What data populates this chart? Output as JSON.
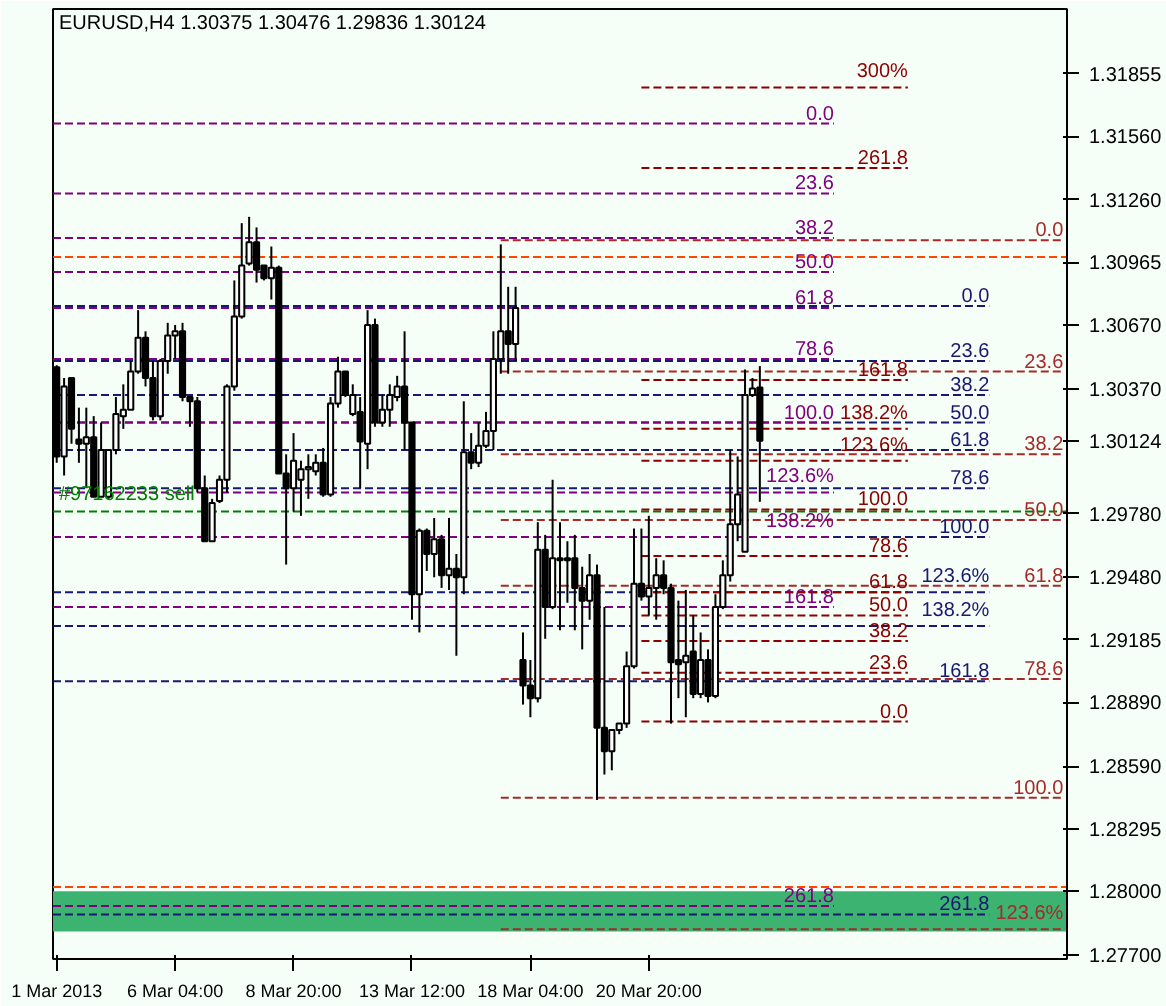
{
  "chart_data": {
    "type": "candlestick",
    "title": "EURUSD,H4  1.30375 1.30476 1.29836 1.30124",
    "categories": [
      "1 Mar 2013",
      null,
      null,
      null,
      null,
      null,
      null,
      null,
      null,
      null,
      null,
      null,
      null,
      null,
      null,
      null,
      "6 Mar 04:00",
      null,
      null,
      null,
      null,
      null,
      null,
      null,
      null,
      null,
      null,
      null,
      null,
      null,
      null,
      null,
      "8 Mar 20:00",
      null,
      null,
      null,
      null,
      null,
      null,
      null,
      null,
      null,
      null,
      null,
      null,
      null,
      null,
      null,
      "13 Mar 12:00",
      null,
      null,
      null,
      null,
      null,
      null,
      null,
      null,
      null,
      null,
      null,
      null,
      null,
      null,
      null,
      "18 Mar 04:00",
      null,
      null,
      null,
      null,
      null,
      null,
      null,
      null,
      null,
      null,
      null,
      null,
      null,
      null,
      null,
      "20 Mar 20:00",
      null,
      null,
      null,
      null,
      null,
      null,
      null,
      null,
      null,
      null,
      null,
      null,
      null,
      null,
      null,
      null,
      null,
      null,
      null,
      null,
      null,
      null,
      null,
      null,
      null,
      null,
      null,
      null,
      null,
      null,
      null,
      null,
      null,
      null,
      null,
      null,
      null,
      null,
      null,
      null,
      null,
      null,
      null,
      null,
      null,
      null,
      null,
      null,
      null,
      null,
      null,
      null,
      null,
      null,
      null,
      null
    ],
    "ohlc": [
      [
        1.3047,
        1.3048,
        1.3002,
        1.3005
      ],
      [
        1.3005,
        1.3042,
        1.2996,
        1.3038
      ],
      [
        1.3042,
        1.3042,
        1.3011,
        1.3018
      ],
      [
        1.3013,
        1.3028,
        1.3002,
        1.3011
      ],
      [
        1.3011,
        1.3028,
        1.299,
        1.3014
      ],
      [
        1.3014,
        1.3024,
        1.2986,
        1.2986
      ],
      [
        1.2986,
        1.3021,
        1.2986,
        1.3008
      ],
      [
        1.2986,
        1.3008,
        1.2985,
        1.3008
      ],
      [
        1.3008,
        1.3033,
        1.3006,
        1.3025
      ],
      [
        1.3024,
        1.3039,
        1.3018,
        1.3027
      ],
      [
        1.3027,
        1.305,
        1.3027,
        1.3045
      ],
      [
        1.3045,
        1.3074,
        1.3044,
        1.3061
      ],
      [
        1.3061,
        1.3064,
        1.3038,
        1.3042
      ],
      [
        1.3042,
        1.305,
        1.3022,
        1.3024
      ],
      [
        1.3024,
        1.3051,
        1.3022,
        1.305
      ],
      [
        1.305,
        1.3068,
        1.3044,
        1.3062
      ],
      [
        1.3062,
        1.3067,
        1.3051,
        1.3064
      ],
      [
        1.3064,
        1.3068,
        1.3031,
        1.3033
      ],
      [
        1.3033,
        1.3033,
        1.3019,
        1.3031
      ],
      [
        1.3031,
        1.3033,
        1.2988,
        1.299
      ],
      [
        1.299,
        1.2996,
        1.2965,
        1.2965
      ],
      [
        1.2965,
        1.2985,
        1.2965,
        1.2983
      ],
      [
        1.2984,
        1.2996,
        1.2983,
        1.2994
      ],
      [
        1.2994,
        1.3039,
        1.2988,
        1.3038
      ],
      [
        1.3038,
        1.3088,
        1.3036,
        1.3071
      ],
      [
        1.3071,
        1.3115,
        1.307,
        1.3095
      ],
      [
        1.3096,
        1.3118,
        1.3095,
        1.3106
      ],
      [
        1.3106,
        1.3113,
        1.3087,
        1.3093
      ],
      [
        1.3095,
        1.3095,
        1.3088,
        1.3089
      ],
      [
        1.3089,
        1.3104,
        1.3079,
        1.3094
      ],
      [
        1.3094,
        1.3095,
        1.2997,
        1.2997
      ],
      [
        1.2997,
        1.3006,
        1.2954,
        1.299
      ],
      [
        1.299,
        1.3016,
        1.2979,
        1.3003
      ],
      [
        1.2994,
        1.3003,
        1.2977,
        1.2999
      ],
      [
        1.2999,
        1.3006,
        1.2985,
        1.3
      ],
      [
        1.2998,
        1.3006,
        1.2996,
        1.3002
      ],
      [
        1.3002,
        1.3009,
        1.2986,
        1.2987
      ],
      [
        1.2987,
        1.3033,
        1.2986,
        1.303
      ],
      [
        1.303,
        1.3052,
        1.3028,
        1.3045
      ],
      [
        1.3045,
        1.3045,
        1.3033,
        1.3034
      ],
      [
        1.3025,
        1.3039,
        1.3024,
        1.3034
      ],
      [
        1.3026,
        1.3033,
        1.299,
        1.3012
      ],
      [
        1.3011,
        1.3074,
        1.2999,
        1.3067
      ],
      [
        1.3067,
        1.307,
        1.3019,
        1.3021
      ],
      [
        1.3021,
        1.3034,
        1.3019,
        1.3027
      ],
      [
        1.3027,
        1.3039,
        1.3019,
        1.3034
      ],
      [
        1.3033,
        1.3043,
        1.3031,
        1.3038
      ],
      [
        1.3038,
        1.3064,
        1.3008,
        1.3021
      ],
      [
        1.3021,
        1.3021,
        1.2928,
        1.294
      ],
      [
        1.294,
        1.2971,
        1.2922,
        1.297
      ],
      [
        1.297,
        1.2971,
        1.2951,
        1.2959
      ],
      [
        1.2959,
        1.2976,
        1.2948,
        1.2966
      ],
      [
        1.2966,
        1.2968,
        1.2943,
        1.2949
      ],
      [
        1.2949,
        1.2976,
        1.2942,
        1.2952
      ],
      [
        1.2952,
        1.2959,
        1.2911,
        1.2948
      ],
      [
        1.2948,
        1.3031,
        1.294,
        1.3007
      ],
      [
        1.3007,
        1.3016,
        1.2999,
        1.3002
      ],
      [
        1.3002,
        1.3021,
        1.3,
        1.301
      ],
      [
        1.301,
        1.3026,
        1.3009,
        1.3017
      ],
      [
        1.3017,
        1.3064,
        1.3008,
        1.3051
      ],
      [
        1.3051,
        1.3105,
        1.3044,
        1.3064
      ],
      [
        1.3064,
        1.3085,
        1.3044,
        1.3058
      ],
      [
        1.3058,
        1.3085,
        1.305,
        1.3075
      ],
      [
        1.2909,
        1.2922,
        1.2888,
        1.2897
      ],
      [
        1.2897,
        1.2909,
        1.2882,
        1.2891
      ],
      [
        1.2891,
        1.2974,
        1.2889,
        1.2961
      ],
      [
        1.2961,
        1.2968,
        1.2919,
        1.2934
      ],
      [
        1.2934,
        1.2994,
        1.2933,
        1.2957
      ],
      [
        1.2957,
        1.2974,
        1.2923,
        1.2956
      ],
      [
        1.2956,
        1.2965,
        1.2936,
        1.2957
      ],
      [
        1.2957,
        1.2968,
        1.2923,
        1.2943
      ],
      [
        1.2943,
        1.2953,
        1.2914,
        1.2937
      ],
      [
        1.2937,
        1.2959,
        1.2928,
        1.2949
      ],
      [
        1.2949,
        1.2954,
        1.2843,
        1.2877
      ],
      [
        1.2877,
        1.2934,
        1.2855,
        1.2866
      ],
      [
        1.2866,
        1.2876,
        1.2857,
        1.2876
      ],
      [
        1.2876,
        1.2879,
        1.2874,
        1.2879
      ],
      [
        1.2879,
        1.2913,
        1.2877,
        1.2906
      ],
      [
        1.2906,
        1.2971,
        1.2905,
        1.2945
      ],
      [
        1.2945,
        1.2971,
        1.2937,
        1.2939
      ],
      [
        1.2939,
        1.2977,
        1.293,
        1.2943
      ],
      [
        1.2943,
        1.2957,
        1.2928,
        1.2949
      ],
      [
        1.2949,
        1.2956,
        1.294,
        1.2943
      ],
      [
        1.2943,
        1.2945,
        1.2879,
        1.2908
      ],
      [
        1.2909,
        1.2937,
        1.2891,
        1.2907
      ],
      [
        1.2908,
        1.2942,
        1.2882,
        1.2911
      ],
      [
        1.2913,
        1.293,
        1.2891,
        1.2893
      ],
      [
        1.2893,
        1.2922,
        1.2891,
        1.2909
      ],
      [
        1.2909,
        1.2914,
        1.2889,
        1.2892
      ],
      [
        1.2892,
        1.294,
        1.2891,
        1.2934
      ],
      [
        1.2934,
        1.2956,
        1.2933,
        1.2949
      ],
      [
        1.2949,
        1.3008,
        1.2946,
        1.2973
      ],
      [
        1.2973,
        1.3005,
        1.2965,
        1.2987
      ],
      [
        1.296,
        1.3046,
        1.296,
        1.3034
      ],
      [
        1.3034,
        1.3042,
        1.3033,
        1.3037
      ],
      [
        1.30375,
        1.30476,
        1.29836,
        1.30124
      ],
      null,
      null,
      null,
      null,
      null,
      null,
      null,
      null,
      null,
      null,
      null,
      null,
      null,
      null,
      null,
      null,
      null,
      null,
      null,
      null,
      null,
      null,
      null,
      null,
      null,
      null,
      null,
      null,
      null,
      null,
      null,
      null,
      null,
      null,
      null,
      null,
      null,
      null,
      null,
      null,
      null
    ],
    "ylim": [
      1.2768,
      1.3216
    ],
    "yticks": [
      {
        "value": 1.31855,
        "label": "1.31855"
      },
      {
        "value": 1.3156,
        "label": "1.31560"
      },
      {
        "value": 1.3126,
        "label": "1.31260"
      },
      {
        "value": 1.30965,
        "label": "1.30965"
      },
      {
        "value": 1.3067,
        "label": "1.30670"
      },
      {
        "value": 1.3037,
        "label": "1.30370"
      },
      {
        "value": 1.30124,
        "label": "1.30124"
      },
      {
        "value": 1.2978,
        "label": "1.29780"
      },
      {
        "value": 1.2948,
        "label": "1.29480"
      },
      {
        "value": 1.29185,
        "label": "1.29185"
      },
      {
        "value": 1.2889,
        "label": "1.28890"
      },
      {
        "value": 1.2859,
        "label": "1.28590"
      },
      {
        "value": 1.28295,
        "label": "1.28295"
      },
      {
        "value": 1.28,
        "label": "1.28000"
      },
      {
        "value": 1.277,
        "label": "1.27700"
      }
    ],
    "ref_lines": [
      {
        "axis": "y",
        "value": 1.3162,
        "color": "#800080",
        "line_style": "dashed"
      },
      {
        "axis": "y",
        "value": 1.3129,
        "color": "#800080",
        "line_style": "dashed"
      },
      {
        "axis": "y",
        "value": 1.3108,
        "color": "#800080",
        "line_style": "dashed"
      },
      {
        "axis": "y",
        "value": 1.3092,
        "color": "#800080",
        "line_style": "dashed"
      },
      {
        "axis": "y",
        "value": 1.3075,
        "color": "#800080",
        "line_style": "dashed"
      },
      {
        "axis": "y",
        "value": 1.3051,
        "color": "#800080",
        "line_style": "dashed"
      },
      {
        "axis": "y",
        "value": 1.3021,
        "color": "#800080",
        "line_style": "dashed"
      },
      {
        "axis": "y",
        "value": 1.2988,
        "color": "#800080",
        "line_style": "dashed"
      },
      {
        "axis": "y",
        "value": 1.2967,
        "color": "#800080",
        "line_style": "dashed"
      },
      {
        "axis": "y",
        "value": 1.2934,
        "color": "#800080",
        "line_style": "dashed"
      },
      {
        "axis": "y",
        "value": 1.2793,
        "color": "#800080",
        "line_style": "dashed"
      },
      {
        "axis": "y",
        "value": 1.288,
        "color": "#8b0000",
        "line_style": "dashed"
      },
      {
        "axis": "y",
        "value": 1.2903,
        "color": "#8b0000",
        "line_style": "dashed"
      },
      {
        "axis": "y",
        "value": 1.2918,
        "color": "#8b0000",
        "line_style": "dashed"
      },
      {
        "axis": "y",
        "value": 1.293,
        "color": "#8b0000",
        "line_style": "dashed"
      },
      {
        "axis": "y",
        "value": 1.2941,
        "color": "#8b0000",
        "line_style": "dashed"
      },
      {
        "axis": "y",
        "value": 1.2958,
        "color": "#8b0000",
        "line_style": "dashed"
      },
      {
        "axis": "y",
        "value": 1.298,
        "color": "#8b0000",
        "line_style": "dashed"
      },
      {
        "axis": "y",
        "value": 1.3003,
        "color": "#8b0000",
        "line_style": "dashed"
      },
      {
        "axis": "y",
        "value": 1.3018,
        "color": "#8b0000",
        "line_style": "dashed"
      },
      {
        "axis": "y",
        "value": 1.3041,
        "color": "#8b0000",
        "line_style": "dashed"
      },
      {
        "axis": "y",
        "value": 1.3141,
        "color": "#8b0000",
        "line_style": "dashed"
      },
      {
        "axis": "y",
        "value": 1.3179,
        "color": "#8b0000",
        "line_style": "dashed"
      },
      {
        "axis": "y",
        "value": 1.3076,
        "color": "#191970",
        "line_style": "dashed"
      },
      {
        "axis": "y",
        "value": 1.305,
        "color": "#191970",
        "line_style": "dashed"
      },
      {
        "axis": "y",
        "value": 1.3034,
        "color": "#191970",
        "line_style": "dashed"
      },
      {
        "axis": "y",
        "value": 1.3021,
        "color": "#191970",
        "line_style": "dashed"
      },
      {
        "axis": "y",
        "value": 1.3008,
        "color": "#191970",
        "line_style": "dashed"
      },
      {
        "axis": "y",
        "value": 1.299,
        "color": "#191970",
        "line_style": "dashed"
      },
      {
        "axis": "y",
        "value": 1.2967,
        "color": "#191970",
        "line_style": "dashed"
      },
      {
        "axis": "y",
        "value": 1.2941,
        "color": "#191970",
        "line_style": "dashed"
      },
      {
        "axis": "y",
        "value": 1.2925,
        "color": "#191970",
        "line_style": "dashed"
      },
      {
        "axis": "y",
        "value": 1.2899,
        "color": "#191970",
        "line_style": "dashed"
      },
      {
        "axis": "y",
        "value": 1.2789,
        "color": "#191970",
        "line_style": "dashed"
      },
      {
        "axis": "y",
        "value": 1.3107,
        "color": "#a52a2a",
        "line_style": "dashed"
      },
      {
        "axis": "y",
        "value": 1.3045,
        "color": "#a52a2a",
        "line_style": "dashed"
      },
      {
        "axis": "y",
        "value": 1.3006,
        "color": "#a52a2a",
        "line_style": "dashed"
      },
      {
        "axis": "y",
        "value": 1.2975,
        "color": "#a52a2a",
        "line_style": "dashed"
      },
      {
        "axis": "y",
        "value": 1.2944,
        "color": "#a52a2a",
        "line_style": "dashed"
      },
      {
        "axis": "y",
        "value": 1.29,
        "color": "#a52a2a",
        "line_style": "dashed"
      },
      {
        "axis": "y",
        "value": 1.2844,
        "color": "#a52a2a",
        "line_style": "dashed"
      },
      {
        "axis": "y",
        "value": 1.2782,
        "color": "#a52a2a",
        "line_style": "dashed"
      },
      {
        "axis": "y",
        "value": 1.2979,
        "color": "#008000",
        "line_style": "dashed"
      },
      {
        "axis": "y",
        "value": 1.3099,
        "color": "#ff4500",
        "line_style": "dashed"
      },
      {
        "axis": "y",
        "value": 1.2802,
        "color": "#ff4500",
        "line_style": "dashed"
      }
    ],
    "bands": [
      {
        "axis": "y",
        "from": 1.2781,
        "to": 1.28,
        "color": "#3cb371"
      }
    ],
    "annotations": [
      {
        "text": "0.0",
        "y": 1.3162
      },
      {
        "text": "23.6",
        "y": 1.3129
      },
      {
        "text": "38.2",
        "y": 1.3108
      },
      {
        "text": "50.0",
        "y": 1.3092
      },
      {
        "text": "61.8",
        "y": 1.3075
      },
      {
        "text": "78.6",
        "y": 1.3051
      },
      {
        "text": "100.0",
        "y": 1.3021
      },
      {
        "text": "123.6%",
        "y": 1.2988
      },
      {
        "text": "138.2%",
        "y": 1.2967
      },
      {
        "text": "161.8",
        "y": 1.2934
      },
      {
        "text": "261.8",
        "y": 1.2793
      },
      {
        "text": "0.0",
        "y": 1.288
      },
      {
        "text": "23.6",
        "y": 1.2903
      },
      {
        "text": "38.2",
        "y": 1.2918
      },
      {
        "text": "50.0",
        "y": 1.293
      },
      {
        "text": "61.8",
        "y": 1.2941
      },
      {
        "text": "78.6",
        "y": 1.2958
      },
      {
        "text": "100.0",
        "y": 1.298
      },
      {
        "text": "123.6%",
        "y": 1.3003
      },
      {
        "text": "138.2%",
        "y": 1.3018
      },
      {
        "text": "161.8",
        "y": 1.3041
      },
      {
        "text": "261.8",
        "y": 1.3141
      },
      {
        "text": "300%",
        "y": 1.3179
      },
      {
        "text": "0.0",
        "y": 1.3076
      },
      {
        "text": "23.6",
        "y": 1.305
      },
      {
        "text": "38.2",
        "y": 1.3034
      },
      {
        "text": "50.0",
        "y": 1.3021
      },
      {
        "text": "61.8",
        "y": 1.3008
      },
      {
        "text": "78.6",
        "y": 1.299
      },
      {
        "text": "100.0",
        "y": 1.2967
      },
      {
        "text": "123.6%",
        "y": 1.2941
      },
      {
        "text": "138.2%",
        "y": 1.2925
      },
      {
        "text": "161.8",
        "y": 1.2899
      },
      {
        "text": "261.8",
        "y": 1.2789
      },
      {
        "text": "0.0",
        "y": 1.3107
      },
      {
        "text": "23.6",
        "y": 1.3045
      },
      {
        "text": "38.2",
        "y": 1.3006
      },
      {
        "text": "50.0",
        "y": 1.2975
      },
      {
        "text": "61.8",
        "y": 1.2944
      },
      {
        "text": "78.6",
        "y": 1.29
      },
      {
        "text": "100.0",
        "y": 1.2844
      },
      {
        "text": "123.6%",
        "y": 1.2782
      },
      {
        "text": "#97162233 sell",
        "y": 1.2979
      }
    ]
  }
}
